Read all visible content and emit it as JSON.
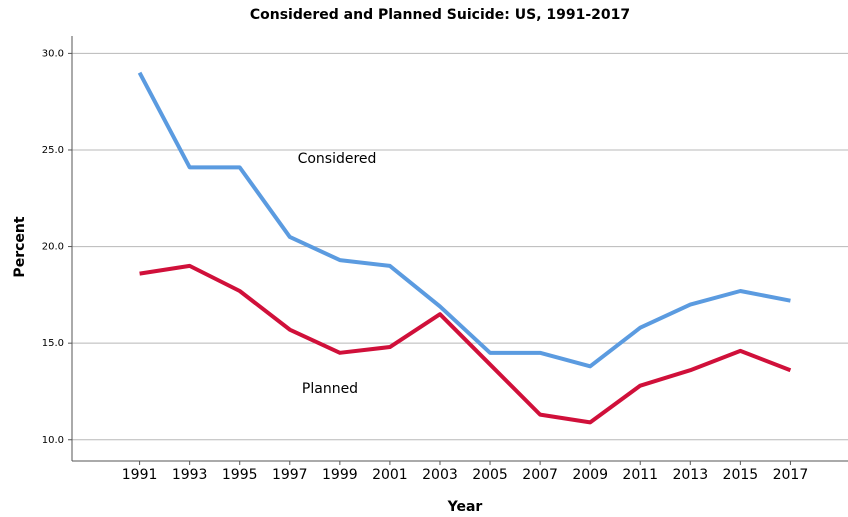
{
  "chart_data": {
    "type": "line",
    "title": "Considered and Planned Suicide: US, 1991-2017",
    "x_label": "Year",
    "y_label": "Percent",
    "x": [
      1991,
      1993,
      1995,
      1997,
      1999,
      2001,
      2003,
      2005,
      2007,
      2009,
      2011,
      2013,
      2015,
      2017
    ],
    "xlim": [
      1988.3,
      2019.3
    ],
    "xticks": [
      1991,
      1993,
      1995,
      1997,
      1999,
      2001,
      2003,
      2005,
      2007,
      2009,
      2011,
      2013,
      2015,
      2017
    ],
    "ylim": [
      8.9,
      30.9
    ],
    "yticks": [
      {
        "value": 10,
        "label": "10.0"
      },
      {
        "value": 15,
        "label": "15.0"
      },
      {
        "value": 20,
        "label": "20.0"
      },
      {
        "value": 25,
        "label": "25.0"
      },
      {
        "value": 30,
        "label": "30.0"
      }
    ],
    "grid": true,
    "series": [
      {
        "name": "Considered",
        "color": "#5b9be0",
        "values": [
          29.0,
          24.1,
          24.1,
          20.5,
          19.3,
          19.0,
          16.9,
          14.5,
          14.5,
          13.8,
          15.8,
          17.0,
          17.7,
          17.2
        ]
      },
      {
        "name": "Planned",
        "color": "#d0103a",
        "values": [
          18.6,
          19.0,
          17.7,
          15.7,
          14.5,
          14.8,
          16.5,
          13.9,
          11.3,
          10.9,
          12.8,
          13.6,
          14.6,
          13.6
        ]
      }
    ]
  }
}
